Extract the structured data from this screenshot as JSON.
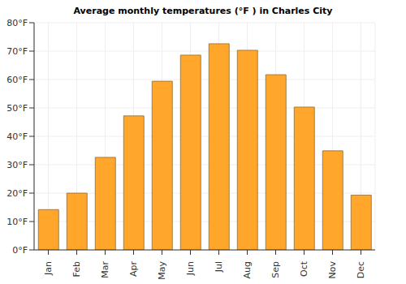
{
  "chart_data": {
    "type": "bar",
    "title": "Average monthly temperatures (°F ) in Charles City",
    "categories": [
      "Jan",
      "Feb",
      "Mar",
      "Apr",
      "May",
      "Jun",
      "Jul",
      "Aug",
      "Sep",
      "Oct",
      "Nov",
      "Dec"
    ],
    "values": [
      14.2,
      20,
      32.6,
      47.2,
      59.4,
      68.6,
      72.6,
      70.3,
      61.7,
      50.3,
      34.9,
      19.3
    ],
    "color": "#ffa62b",
    "ylim": [
      0,
      80
    ],
    "yticks": [
      {
        "value": 0,
        "label": "0°F"
      },
      {
        "value": 10,
        "label": "10°F"
      },
      {
        "value": 20,
        "label": "20°F"
      },
      {
        "value": 30,
        "label": "30°F"
      },
      {
        "value": 40,
        "label": "40°F"
      },
      {
        "value": 50,
        "label": "50°F"
      },
      {
        "value": 60,
        "label": "60°F"
      },
      {
        "value": 70,
        "label": "70°F"
      },
      {
        "value": 80,
        "label": "80°F"
      }
    ],
    "grid": true
  }
}
